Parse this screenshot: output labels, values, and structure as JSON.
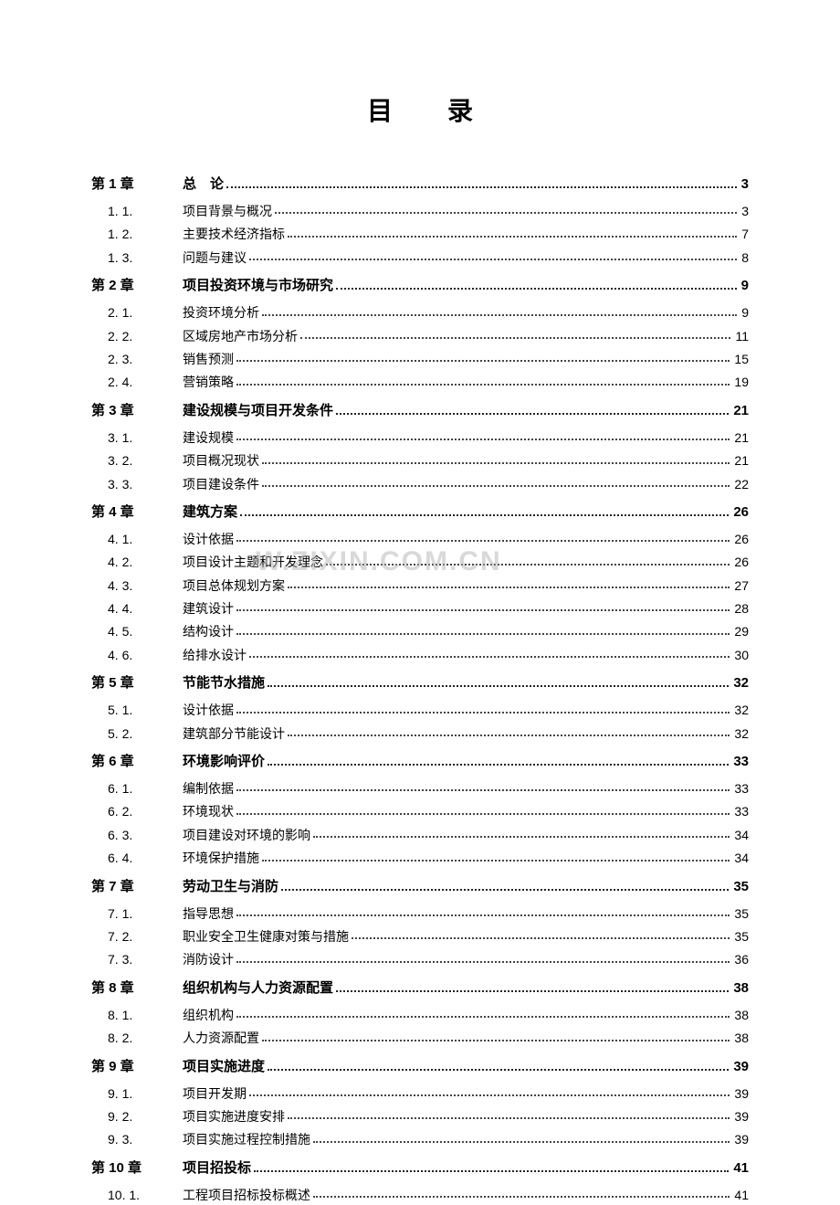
{
  "title": "目录",
  "watermark": "W.ZIXIN.COM.CN",
  "colors": {
    "text": "#000000",
    "dots": "#444444",
    "background": "#ffffff",
    "watermark": "rgba(180,180,180,0.5)"
  },
  "typography": {
    "title_fontsize": 28,
    "chapter_fontsize": 15,
    "section_fontsize": 14,
    "font_family": "SimSun"
  },
  "entries": [
    {
      "num": "第 1 章",
      "label": "总　论",
      "page": "3",
      "level": "chapter"
    },
    {
      "num": "1. 1.",
      "label": "项目背景与概况",
      "page": "3",
      "level": "section"
    },
    {
      "num": "1. 2.",
      "label": "主要技术经济指标",
      "page": "7",
      "level": "section"
    },
    {
      "num": "1. 3.",
      "label": "问题与建议",
      "page": "8",
      "level": "section"
    },
    {
      "num": "第 2 章",
      "label": "项目投资环境与市场研究",
      "page": "9",
      "level": "chapter"
    },
    {
      "num": "2. 1.",
      "label": "投资环境分析",
      "page": "9",
      "level": "section"
    },
    {
      "num": "2. 2.",
      "label": "区域房地产市场分析",
      "page": "11",
      "level": "section"
    },
    {
      "num": "2. 3.",
      "label": "销售预测",
      "page": "15",
      "level": "section"
    },
    {
      "num": "2. 4.",
      "label": "营销策略",
      "page": "19",
      "level": "section"
    },
    {
      "num": "第 3 章",
      "label": "建设规模与项目开发条件",
      "page": "21",
      "level": "chapter"
    },
    {
      "num": "3. 1.",
      "label": "建设规模",
      "page": "21",
      "level": "section"
    },
    {
      "num": "3. 2.",
      "label": "项目概况现状",
      "page": "21",
      "level": "section"
    },
    {
      "num": "3. 3.",
      "label": "项目建设条件",
      "page": "22",
      "level": "section"
    },
    {
      "num": "第 4 章",
      "label": "建筑方案",
      "page": "26",
      "level": "chapter"
    },
    {
      "num": "4. 1.",
      "label": "设计依据",
      "page": "26",
      "level": "section"
    },
    {
      "num": "4. 2.",
      "label": "项目设计主题和开发理念",
      "page": "26",
      "level": "section"
    },
    {
      "num": "4. 3.",
      "label": "项目总体规划方案",
      "page": "27",
      "level": "section"
    },
    {
      "num": "4. 4.",
      "label": "建筑设计",
      "page": "28",
      "level": "section"
    },
    {
      "num": "4. 5.",
      "label": "结构设计",
      "page": "29",
      "level": "section"
    },
    {
      "num": "4. 6.",
      "label": "给排水设计",
      "page": "30",
      "level": "section"
    },
    {
      "num": "第 5 章",
      "label": "节能节水措施",
      "page": "32",
      "level": "chapter"
    },
    {
      "num": "5. 1.",
      "label": "设计依据",
      "page": "32",
      "level": "section"
    },
    {
      "num": "5. 2.",
      "label": "建筑部分节能设计",
      "page": "32",
      "level": "section"
    },
    {
      "num": "第 6 章",
      "label": "环境影响评价",
      "page": "33",
      "level": "chapter"
    },
    {
      "num": "6. 1.",
      "label": "编制依据",
      "page": "33",
      "level": "section"
    },
    {
      "num": "6. 2.",
      "label": "环境现状",
      "page": "33",
      "level": "section"
    },
    {
      "num": "6. 3.",
      "label": "项目建设对环境的影响",
      "page": "34",
      "level": "section"
    },
    {
      "num": "6. 4.",
      "label": "环境保护措施",
      "page": "34",
      "level": "section"
    },
    {
      "num": "第 7 章",
      "label": "劳动卫生与消防",
      "page": "35",
      "level": "chapter"
    },
    {
      "num": "7. 1.",
      "label": "指导思想",
      "page": "35",
      "level": "section"
    },
    {
      "num": "7. 2.",
      "label": "职业安全卫生健康对策与措施",
      "page": "35",
      "level": "section"
    },
    {
      "num": "7. 3.",
      "label": "消防设计",
      "page": "36",
      "level": "section"
    },
    {
      "num": "第 8 章",
      "label": "组织机构与人力资源配置",
      "page": "38",
      "level": "chapter"
    },
    {
      "num": "8. 1.",
      "label": "组织机构",
      "page": "38",
      "level": "section"
    },
    {
      "num": "8. 2.",
      "label": "人力资源配置",
      "page": "38",
      "level": "section"
    },
    {
      "num": "第 9 章",
      "label": "项目实施进度",
      "page": "39",
      "level": "chapter"
    },
    {
      "num": "9. 1.",
      "label": "项目开发期",
      "page": "39",
      "level": "section"
    },
    {
      "num": "9. 2.",
      "label": "项目实施进度安排",
      "page": "39",
      "level": "section"
    },
    {
      "num": "9. 3.",
      "label": "项目实施过程控制措施",
      "page": "39",
      "level": "section"
    },
    {
      "num": "第 10 章",
      "label": "项目招投标",
      "page": "41",
      "level": "chapter"
    },
    {
      "num": "10. 1.",
      "label": "工程项目招标投标概述",
      "page": "41",
      "level": "section"
    }
  ]
}
